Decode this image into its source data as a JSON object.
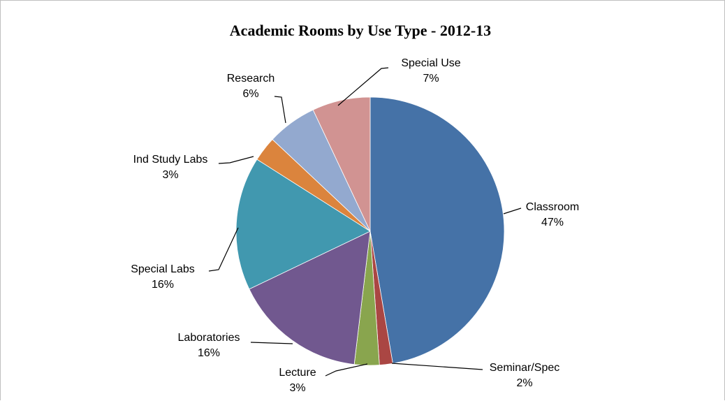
{
  "chart_data": {
    "type": "pie",
    "title": "Academic Rooms by Use Type - 2012-13",
    "start_angle_deg": 0,
    "direction": "clockwise",
    "slices": [
      {
        "label": "Classroom",
        "percent_label": "47%",
        "value": 47.3,
        "color": "#4572A7"
      },
      {
        "label": "Seminar/Spec",
        "percent_label": "2%",
        "value": 1.6,
        "color": "#AA4643"
      },
      {
        "label": "Lecture",
        "percent_label": "3%",
        "value": 3.0,
        "color": "#89A54E"
      },
      {
        "label": "Laboratories",
        "percent_label": "16%",
        "value": 16.0,
        "color": "#71588F"
      },
      {
        "label": "Special Labs",
        "percent_label": "16%",
        "value": 16.1,
        "color": "#4198AF"
      },
      {
        "label": "Ind Study Labs",
        "percent_label": "3%",
        "value": 3.0,
        "color": "#DB843D"
      },
      {
        "label": "Research",
        "percent_label": "6%",
        "value": 6.0,
        "color": "#93A9CF"
      },
      {
        "label": "Special Use",
        "percent_label": "7%",
        "value": 7.0,
        "color": "#D19392"
      }
    ],
    "legend": "none"
  }
}
